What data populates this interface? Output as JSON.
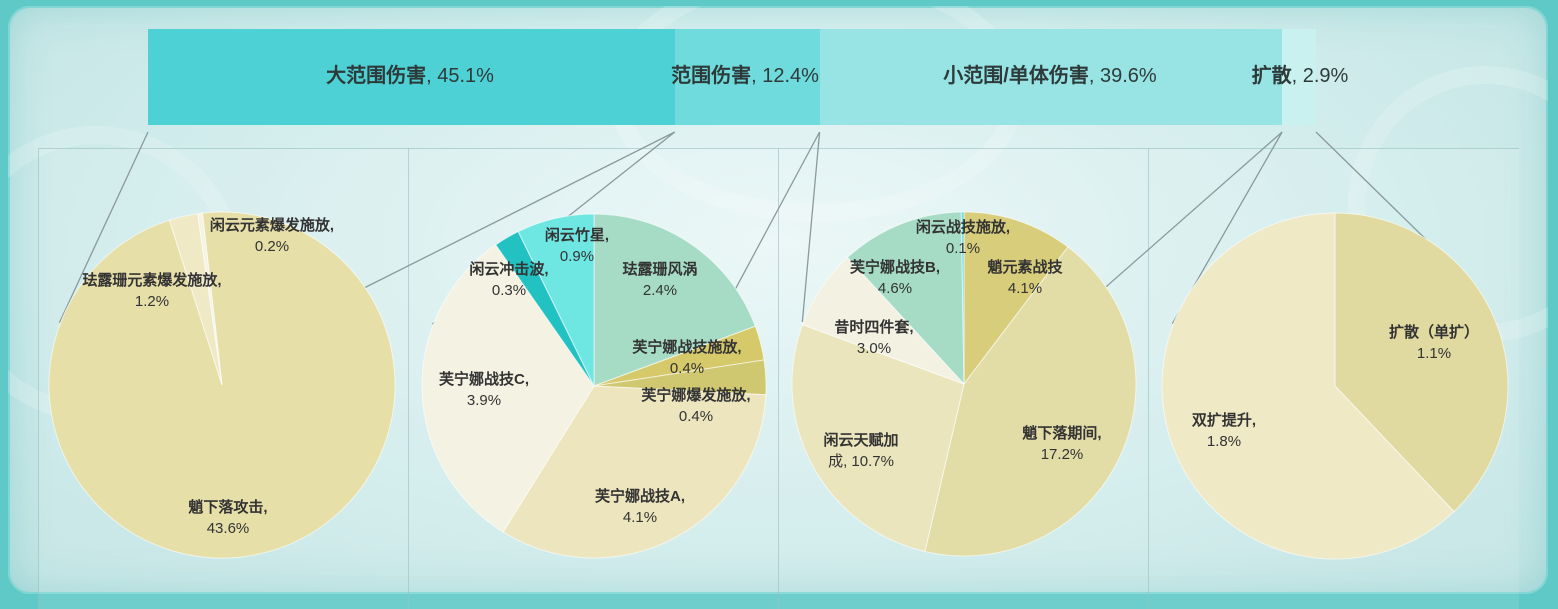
{
  "palette": {
    "bar": [
      "#4ed1d4",
      "#6fdbdc",
      "#98e4e4",
      "#c9f1f0"
    ],
    "big_pie": [
      "#e6dfa8",
      "#efe9c6",
      "#f5f3e2"
    ],
    "pie2": [
      "#a6dcc6",
      "#d6c96a",
      "#cfc870",
      "#ece5bd",
      "#f4f2e2",
      "#22c2c2",
      "#6ee6e2"
    ],
    "pie3": [
      "#d8cd7a",
      "#e2dca6",
      "#eae5bd",
      "#f3f1e2",
      "#a6dcc6",
      "#6fdbdc"
    ],
    "pie4": [
      "#e0d9a0",
      "#efe9c6"
    ]
  },
  "chart_data": [
    {
      "type": "bar",
      "orientation": "horizontal-stacked",
      "categories": [
        "大范围伤害",
        "范围伤害",
        "小范围/单体伤害",
        "扩散"
      ],
      "values": [
        45.1,
        12.4,
        39.6,
        2.9
      ],
      "value_labels": [
        "45.1%",
        "12.4%",
        "39.6%",
        "2.9%"
      ]
    },
    {
      "type": "pie",
      "series_of": "大范围伤害",
      "labels": [
        "魈下落攻击",
        "珐露珊元素爆发施放",
        "闲云元素爆发施放"
      ],
      "values": [
        43.6,
        1.2,
        0.2
      ],
      "value_labels": [
        "43.6%",
        "1.2%",
        "0.2%"
      ]
    },
    {
      "type": "pie",
      "series_of": "范围伤害",
      "labels": [
        "珐露珊风涡",
        "芙宁娜战技施放",
        "芙宁娜爆发施放",
        "芙宁娜战技A",
        "芙宁娜战技C",
        "闲云冲击波",
        "闲云竹星"
      ],
      "values": [
        2.4,
        0.4,
        0.4,
        4.1,
        3.9,
        0.3,
        0.9
      ],
      "value_labels": [
        "2.4%",
        "0.4%",
        "0.4%",
        "4.1%",
        "3.9%",
        "0.3%",
        "0.9%"
      ]
    },
    {
      "type": "pie",
      "series_of": "小范围/单体伤害",
      "labels": [
        "魈元素战技",
        "魈下落期间",
        "闲云天赋加成",
        "昔时四件套",
        "芙宁娜战技B",
        "闲云战技施放"
      ],
      "values": [
        4.1,
        17.2,
        10.7,
        3.0,
        4.6,
        0.1
      ],
      "value_labels": [
        "4.1%",
        "17.2%",
        "10.7%",
        "3.0%",
        "4.6%",
        "0.1%"
      ]
    },
    {
      "type": "pie",
      "series_of": "扩散",
      "labels": [
        "扩散（单扩）",
        "双扩提升"
      ],
      "values": [
        1.1,
        1.8
      ],
      "value_labels": [
        "1.1%",
        "1.8%"
      ]
    }
  ],
  "text": {
    "bar": [
      {
        "name": "大范围伤害",
        "value": ", 45.1%"
      },
      {
        "name": "范围伤害",
        "value": ", 12.4%"
      },
      {
        "name": "小范围/单体伤害",
        "value": ", 39.6%"
      },
      {
        "name": "扩散",
        "value": ", 2.9%"
      }
    ],
    "pie1": [
      {
        "name": "魈下落攻击,",
        "value": "43.6%"
      },
      {
        "name": "珐露珊元素爆发施放,",
        "value": "1.2%"
      },
      {
        "name": "闲云元素爆发施放,",
        "value": "0.2%"
      }
    ],
    "pie2": [
      {
        "name": "珐露珊风涡",
        "value": "2.4%"
      },
      {
        "name": "芙宁娜战技施放,",
        "value": "0.4%"
      },
      {
        "name": "芙宁娜爆发施放,",
        "value": "0.4%"
      },
      {
        "name": "芙宁娜战技A,",
        "value": "4.1%"
      },
      {
        "name": "芙宁娜战技C,",
        "value": "3.9%"
      },
      {
        "name": "闲云冲击波,",
        "value": "0.3%"
      },
      {
        "name": "闲云竹星,",
        "value": "0.9%"
      }
    ],
    "pie3": [
      {
        "name": "魈元素战技",
        "value": "4.1%"
      },
      {
        "name": "魈下落期间,",
        "value": "17.2%"
      },
      {
        "name": "闲云天赋加",
        "value": "成, 10.7%"
      },
      {
        "name": "昔时四件套,",
        "value": "3.0%"
      },
      {
        "name": "芙宁娜战技B,",
        "value": "4.6%"
      },
      {
        "name": "闲云战技施放,",
        "value": "0.1%"
      }
    ],
    "pie4": [
      {
        "name": "扩散（单扩）",
        "value": "1.1%"
      },
      {
        "name": "双扩提升,",
        "value": "1.8%"
      }
    ]
  }
}
